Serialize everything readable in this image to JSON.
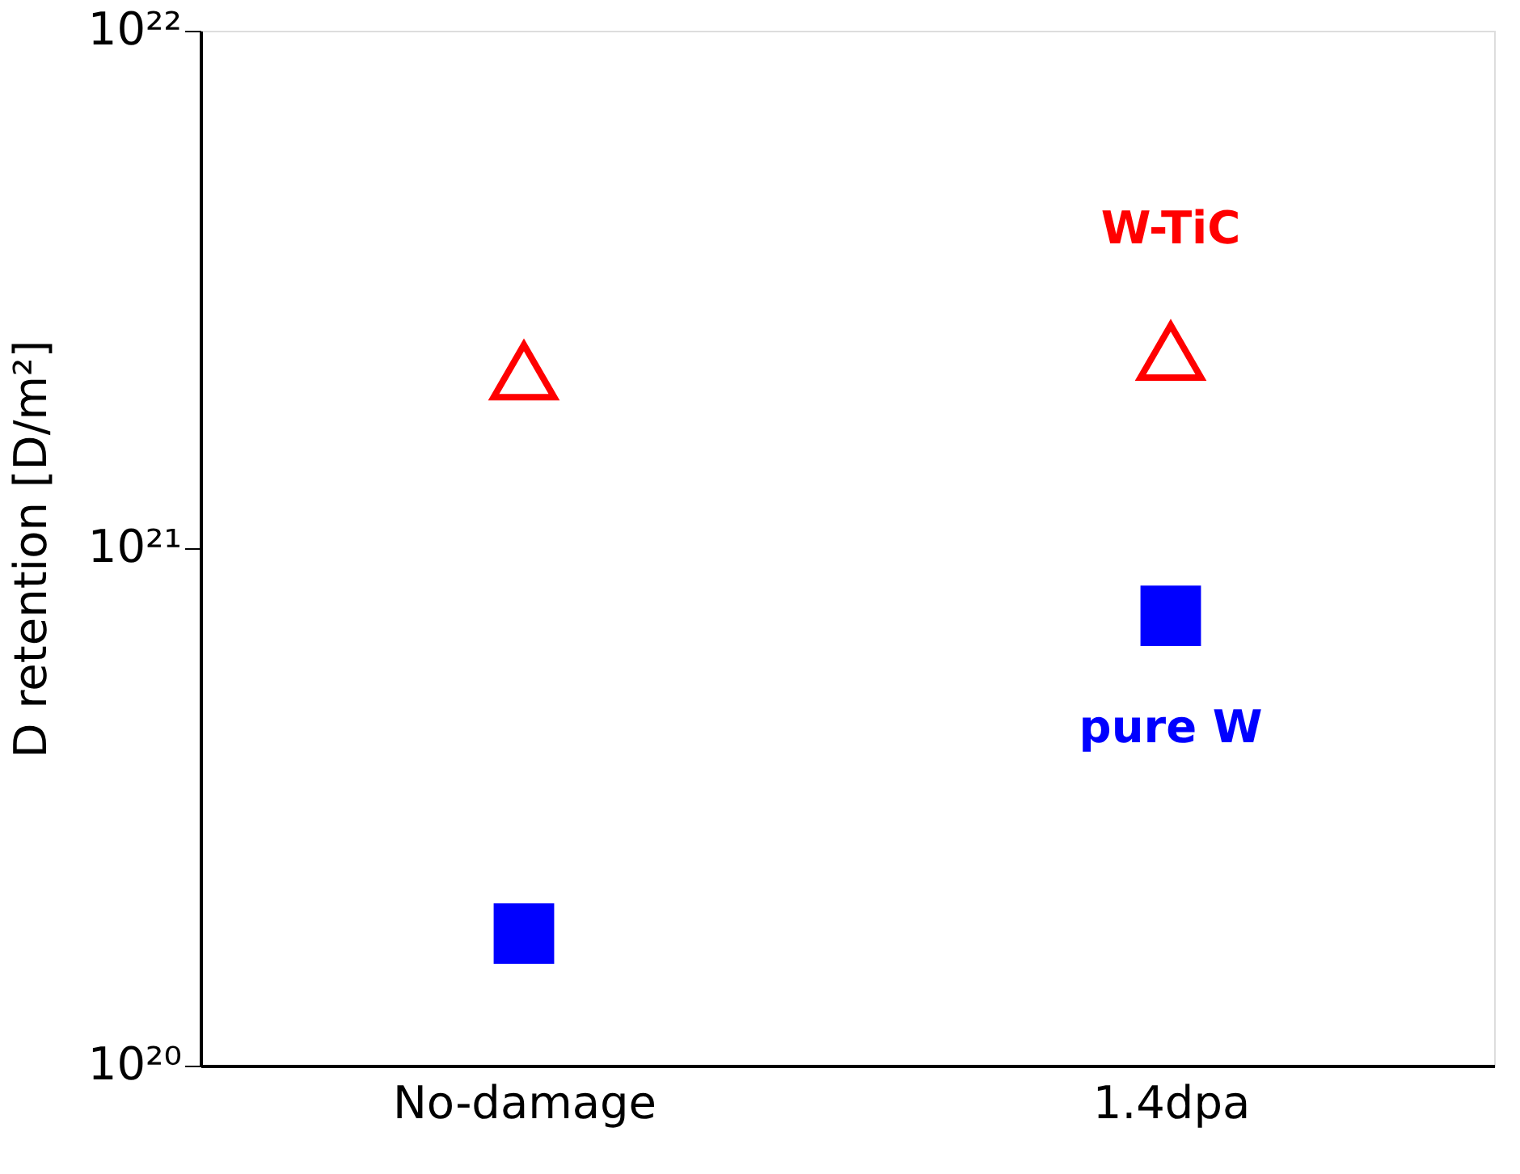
{
  "chart_data": {
    "type": "scatter",
    "ylabel": "D retention [D/m²]",
    "categories": [
      "No-damage",
      "1.4dpa"
    ],
    "series": [
      {
        "name": "W-TiC",
        "color": "#ff0000",
        "marker": "triangle",
        "values": [
          2.2e+21,
          2.4e+21
        ]
      },
      {
        "name": "pure W",
        "color": "#0000ff",
        "marker": "square",
        "values": [
          1.8e+20,
          7.4e+20
        ]
      }
    ],
    "log": "y",
    "ylim": [
      1e+20,
      1e+22
    ],
    "yticks": [
      {
        "value": 1e+20,
        "label": "10²⁰"
      },
      {
        "value": 1e+21,
        "label": "10²¹"
      },
      {
        "value": 1e+22,
        "label": "10²²"
      }
    ],
    "grid": false,
    "legend": false
  }
}
